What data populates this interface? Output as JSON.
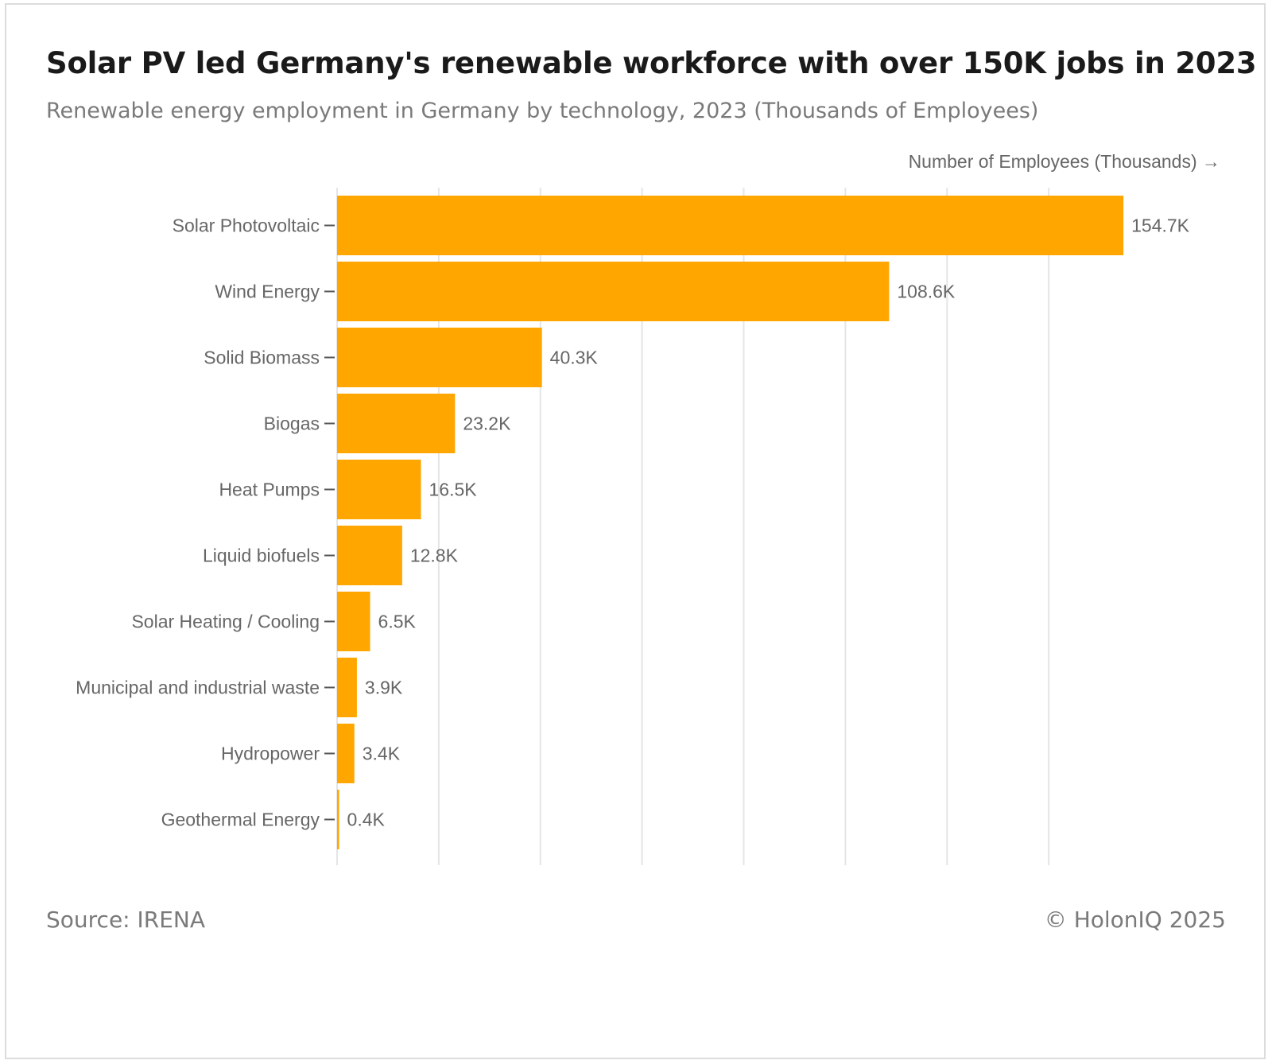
{
  "header": {
    "title": "Solar PV led Germany's renewable workforce with over 150K jobs in 2023",
    "subtitle": "Renewable energy employment in Germany by technology, 2023 (Thousands of Employees)"
  },
  "footer": {
    "source": "Source: IRENA",
    "copyright": "© HolonIQ 2025"
  },
  "colors": {
    "bar": "#FFA600",
    "grid": "#e5e5e5",
    "label": "#666666"
  },
  "chart_data": {
    "type": "bar",
    "orientation": "horizontal",
    "title": "Solar PV led Germany's renewable workforce with over 150K jobs in 2023",
    "subtitle": "Renewable energy employment in Germany by technology, 2023 (Thousands of Employees)",
    "xlabel": "Number of Employees (Thousands) →",
    "ylabel": "",
    "xlim": [
      0,
      160
    ],
    "grid": true,
    "categories": [
      "Solar Photovoltaic",
      "Wind Energy",
      "Solid Biomass",
      "Biogas",
      "Heat Pumps",
      "Liquid biofuels",
      "Solar Heating / Cooling",
      "Municipal and industrial waste",
      "Hydropower",
      "Geothermal Energy"
    ],
    "values": [
      154.7,
      108.6,
      40.3,
      23.2,
      16.5,
      12.8,
      6.5,
      3.9,
      3.4,
      0.4
    ],
    "value_labels": [
      "154.7K",
      "108.6K",
      "40.3K",
      "23.2K",
      "16.5K",
      "12.8K",
      "6.5K",
      "3.9K",
      "3.4K",
      "0.4K"
    ],
    "grid_values": [
      0,
      20,
      40,
      60,
      80,
      100,
      120,
      140
    ]
  }
}
